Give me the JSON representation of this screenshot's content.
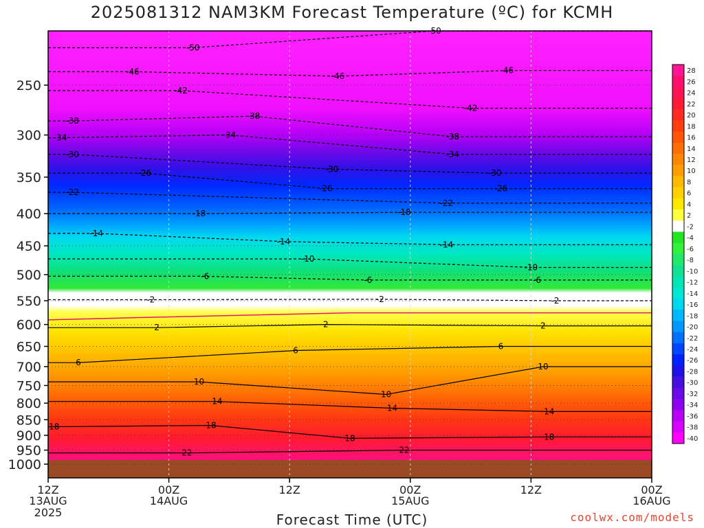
{
  "chart_data": {
    "type": "heatmap",
    "title": "2025081312 NAM3KM Forecast Temperature (ºC) for KCMH",
    "xlabel": "Forecast Time (UTC)",
    "ylabel": "",
    "ylim": [
      1040,
      200
    ],
    "y_ticks": [
      "250",
      "300",
      "350",
      "400",
      "450",
      "500",
      "550",
      "600",
      "650",
      "700",
      "750",
      "800",
      "850",
      "900",
      "950",
      "1000"
    ],
    "x_ticks": [
      {
        "time": "12Z",
        "date": "13AUG",
        "year": "2025"
      },
      {
        "time": "00Z",
        "date": "14AUG",
        "year": ""
      },
      {
        "time": "12Z",
        "date": "",
        "year": ""
      },
      {
        "time": "00Z",
        "date": "15AUG",
        "year": ""
      },
      {
        "time": "12Z",
        "date": "",
        "year": ""
      },
      {
        "time": "00Z",
        "date": "16AUG",
        "year": ""
      }
    ],
    "colorbar_labels": [
      "28",
      "26",
      "24",
      "22",
      "20",
      "18",
      "16",
      "14",
      "12",
      "10",
      "8",
      "6",
      "4",
      "2",
      "-2",
      "-4",
      "-6",
      "-8",
      "-10",
      "-12",
      "-14",
      "-16",
      "-18",
      "-20",
      "-22",
      "-24",
      "-26",
      "-28",
      "-30",
      "-32",
      "-34",
      "-36",
      "-38",
      "-40"
    ],
    "colorbar_colors": [
      "#ff1493",
      "#ff106c",
      "#ff1155",
      "#ff1a36",
      "#ff2a20",
      "#ff3d0f",
      "#ff5608",
      "#ff6e05",
      "#ff8502",
      "#ff9e00",
      "#ffb800",
      "#ffd000",
      "#ffe800",
      "#ffff40",
      "#ffffff",
      "#21e621",
      "#33f03a",
      "#1fe86a",
      "#10e090",
      "#00e6b4",
      "#00e8d4",
      "#00d8f0",
      "#00b8ff",
      "#0098ff",
      "#0070ff",
      "#0048ff",
      "#0020ff",
      "#2010e8",
      "#4410e0",
      "#6a08e8",
      "#9000f0",
      "#b800f8",
      "#d800ff",
      "#ff00ff"
    ],
    "contour_labels": [
      {
        "label": "-50",
        "time": 0.24,
        "p": 218
      },
      {
        "label": "-50",
        "time": 0.64,
        "p": 205
      },
      {
        "label": "-46",
        "time": 0.14,
        "p": 238
      },
      {
        "label": "-46",
        "time": 0.48,
        "p": 242
      },
      {
        "label": "-46",
        "time": 0.76,
        "p": 237
      },
      {
        "label": "-42",
        "time": 0.22,
        "p": 255
      },
      {
        "label": "-42",
        "time": 0.7,
        "p": 272
      },
      {
        "label": "-38",
        "time": 0.04,
        "p": 285
      },
      {
        "label": "-38",
        "time": 0.34,
        "p": 280
      },
      {
        "label": "-38",
        "time": 0.67,
        "p": 302
      },
      {
        "label": "-34",
        "time": 0.02,
        "p": 303
      },
      {
        "label": "-34",
        "time": 0.3,
        "p": 300
      },
      {
        "label": "-34",
        "time": 0.67,
        "p": 322
      },
      {
        "label": "-30",
        "time": 0.04,
        "p": 322
      },
      {
        "label": "-30",
        "time": 0.47,
        "p": 340
      },
      {
        "label": "-30",
        "time": 0.74,
        "p": 345
      },
      {
        "label": "-26",
        "time": 0.16,
        "p": 345
      },
      {
        "label": "-26",
        "time": 0.46,
        "p": 365
      },
      {
        "label": "-26",
        "time": 0.75,
        "p": 365
      },
      {
        "label": "-22",
        "time": 0.04,
        "p": 370
      },
      {
        "label": "-22",
        "time": 0.66,
        "p": 385
      },
      {
        "label": "-18",
        "time": 0.25,
        "p": 400
      },
      {
        "label": "-18",
        "time": 0.59,
        "p": 398
      },
      {
        "label": "-14",
        "time": 0.08,
        "p": 430
      },
      {
        "label": "-14",
        "time": 0.39,
        "p": 443
      },
      {
        "label": "-14",
        "time": 0.66,
        "p": 448
      },
      {
        "label": "-10",
        "time": 0.43,
        "p": 472
      },
      {
        "label": "-10",
        "time": 0.8,
        "p": 487
      },
      {
        "label": "-6",
        "time": 0.26,
        "p": 503
      },
      {
        "label": "-6",
        "time": 0.53,
        "p": 510
      },
      {
        "label": "-6",
        "time": 0.81,
        "p": 510
      },
      {
        "label": "-2",
        "time": 0.17,
        "p": 548
      },
      {
        "label": "-2",
        "time": 0.55,
        "p": 547
      },
      {
        "label": "-2",
        "time": 0.84,
        "p": 550
      },
      {
        "label": "2",
        "time": 0.18,
        "p": 607
      },
      {
        "label": "2",
        "time": 0.46,
        "p": 600
      },
      {
        "label": "2",
        "time": 0.82,
        "p": 603
      },
      {
        "label": "6",
        "time": 0.05,
        "p": 690
      },
      {
        "label": "6",
        "time": 0.41,
        "p": 660
      },
      {
        "label": "6",
        "time": 0.75,
        "p": 650
      },
      {
        "label": "10",
        "time": 0.25,
        "p": 740
      },
      {
        "label": "10",
        "time": 0.56,
        "p": 775
      },
      {
        "label": "10",
        "time": 0.82,
        "p": 700
      },
      {
        "label": "14",
        "time": 0.28,
        "p": 795
      },
      {
        "label": "14",
        "time": 0.57,
        "p": 815
      },
      {
        "label": "14",
        "time": 0.83,
        "p": 825
      },
      {
        "label": "18",
        "time": 0.01,
        "p": 872
      },
      {
        "label": "18",
        "time": 0.27,
        "p": 868
      },
      {
        "label": "18",
        "time": 0.5,
        "p": 910
      },
      {
        "label": "18",
        "time": 0.83,
        "p": 905
      },
      {
        "label": "22",
        "time": 0.23,
        "p": 960
      },
      {
        "label": "22",
        "time": 0.59,
        "p": 950
      }
    ]
  },
  "credit": "coolwx.com/models"
}
